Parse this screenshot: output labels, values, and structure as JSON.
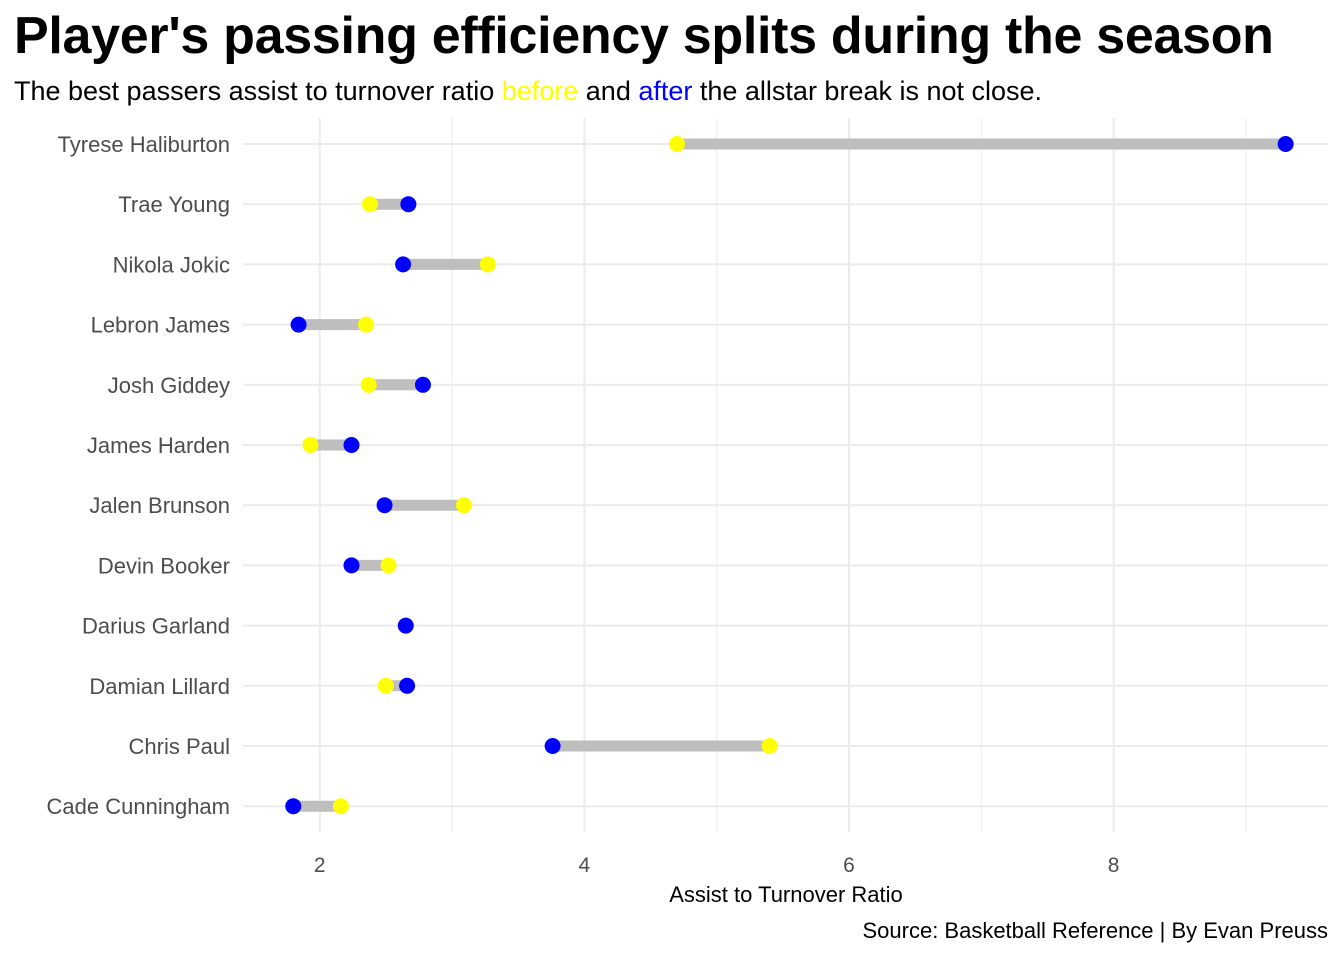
{
  "chart_data": {
    "type": "dumbbell",
    "title": "Player's passing efficiency splits during the season",
    "subtitle": {
      "pre": "The best passers assist to turnover ratio ",
      "before_word": "before",
      "mid": " and ",
      "after_word": "after",
      "post": " the allstar break is not close."
    },
    "caption": "Source: Basketball Reference | By Evan Preuss",
    "xlabel": "Assist to Turnover Ratio",
    "ylabel": "",
    "xlim": [
      1.42,
      9.62
    ],
    "x_ticks": [
      2,
      4,
      6,
      8
    ],
    "grid": true,
    "colors": {
      "before": "#FFFF00",
      "after": "#0000FF",
      "segment": "#BEBEBE",
      "grid": "#EBEBEB",
      "axis_text": "#4D4D4D"
    },
    "categories": [
      "Tyrese Haliburton",
      "Trae Young",
      "Nikola Jokic",
      "Lebron James",
      "Josh Giddey",
      "James Harden",
      "Jalen Brunson",
      "Devin Booker",
      "Darius Garland",
      "Damian Lillard",
      "Chris Paul",
      "Cade Cunningham"
    ],
    "series": [
      {
        "key": "before",
        "values": [
          4.7,
          2.38,
          3.27,
          2.35,
          2.37,
          1.93,
          3.09,
          2.52,
          2.65,
          2.5,
          5.4,
          2.16
        ]
      },
      {
        "key": "after",
        "values": [
          9.3,
          2.67,
          2.63,
          1.84,
          2.78,
          2.24,
          2.49,
          2.24,
          2.65,
          2.66,
          3.76,
          1.8
        ]
      }
    ]
  }
}
